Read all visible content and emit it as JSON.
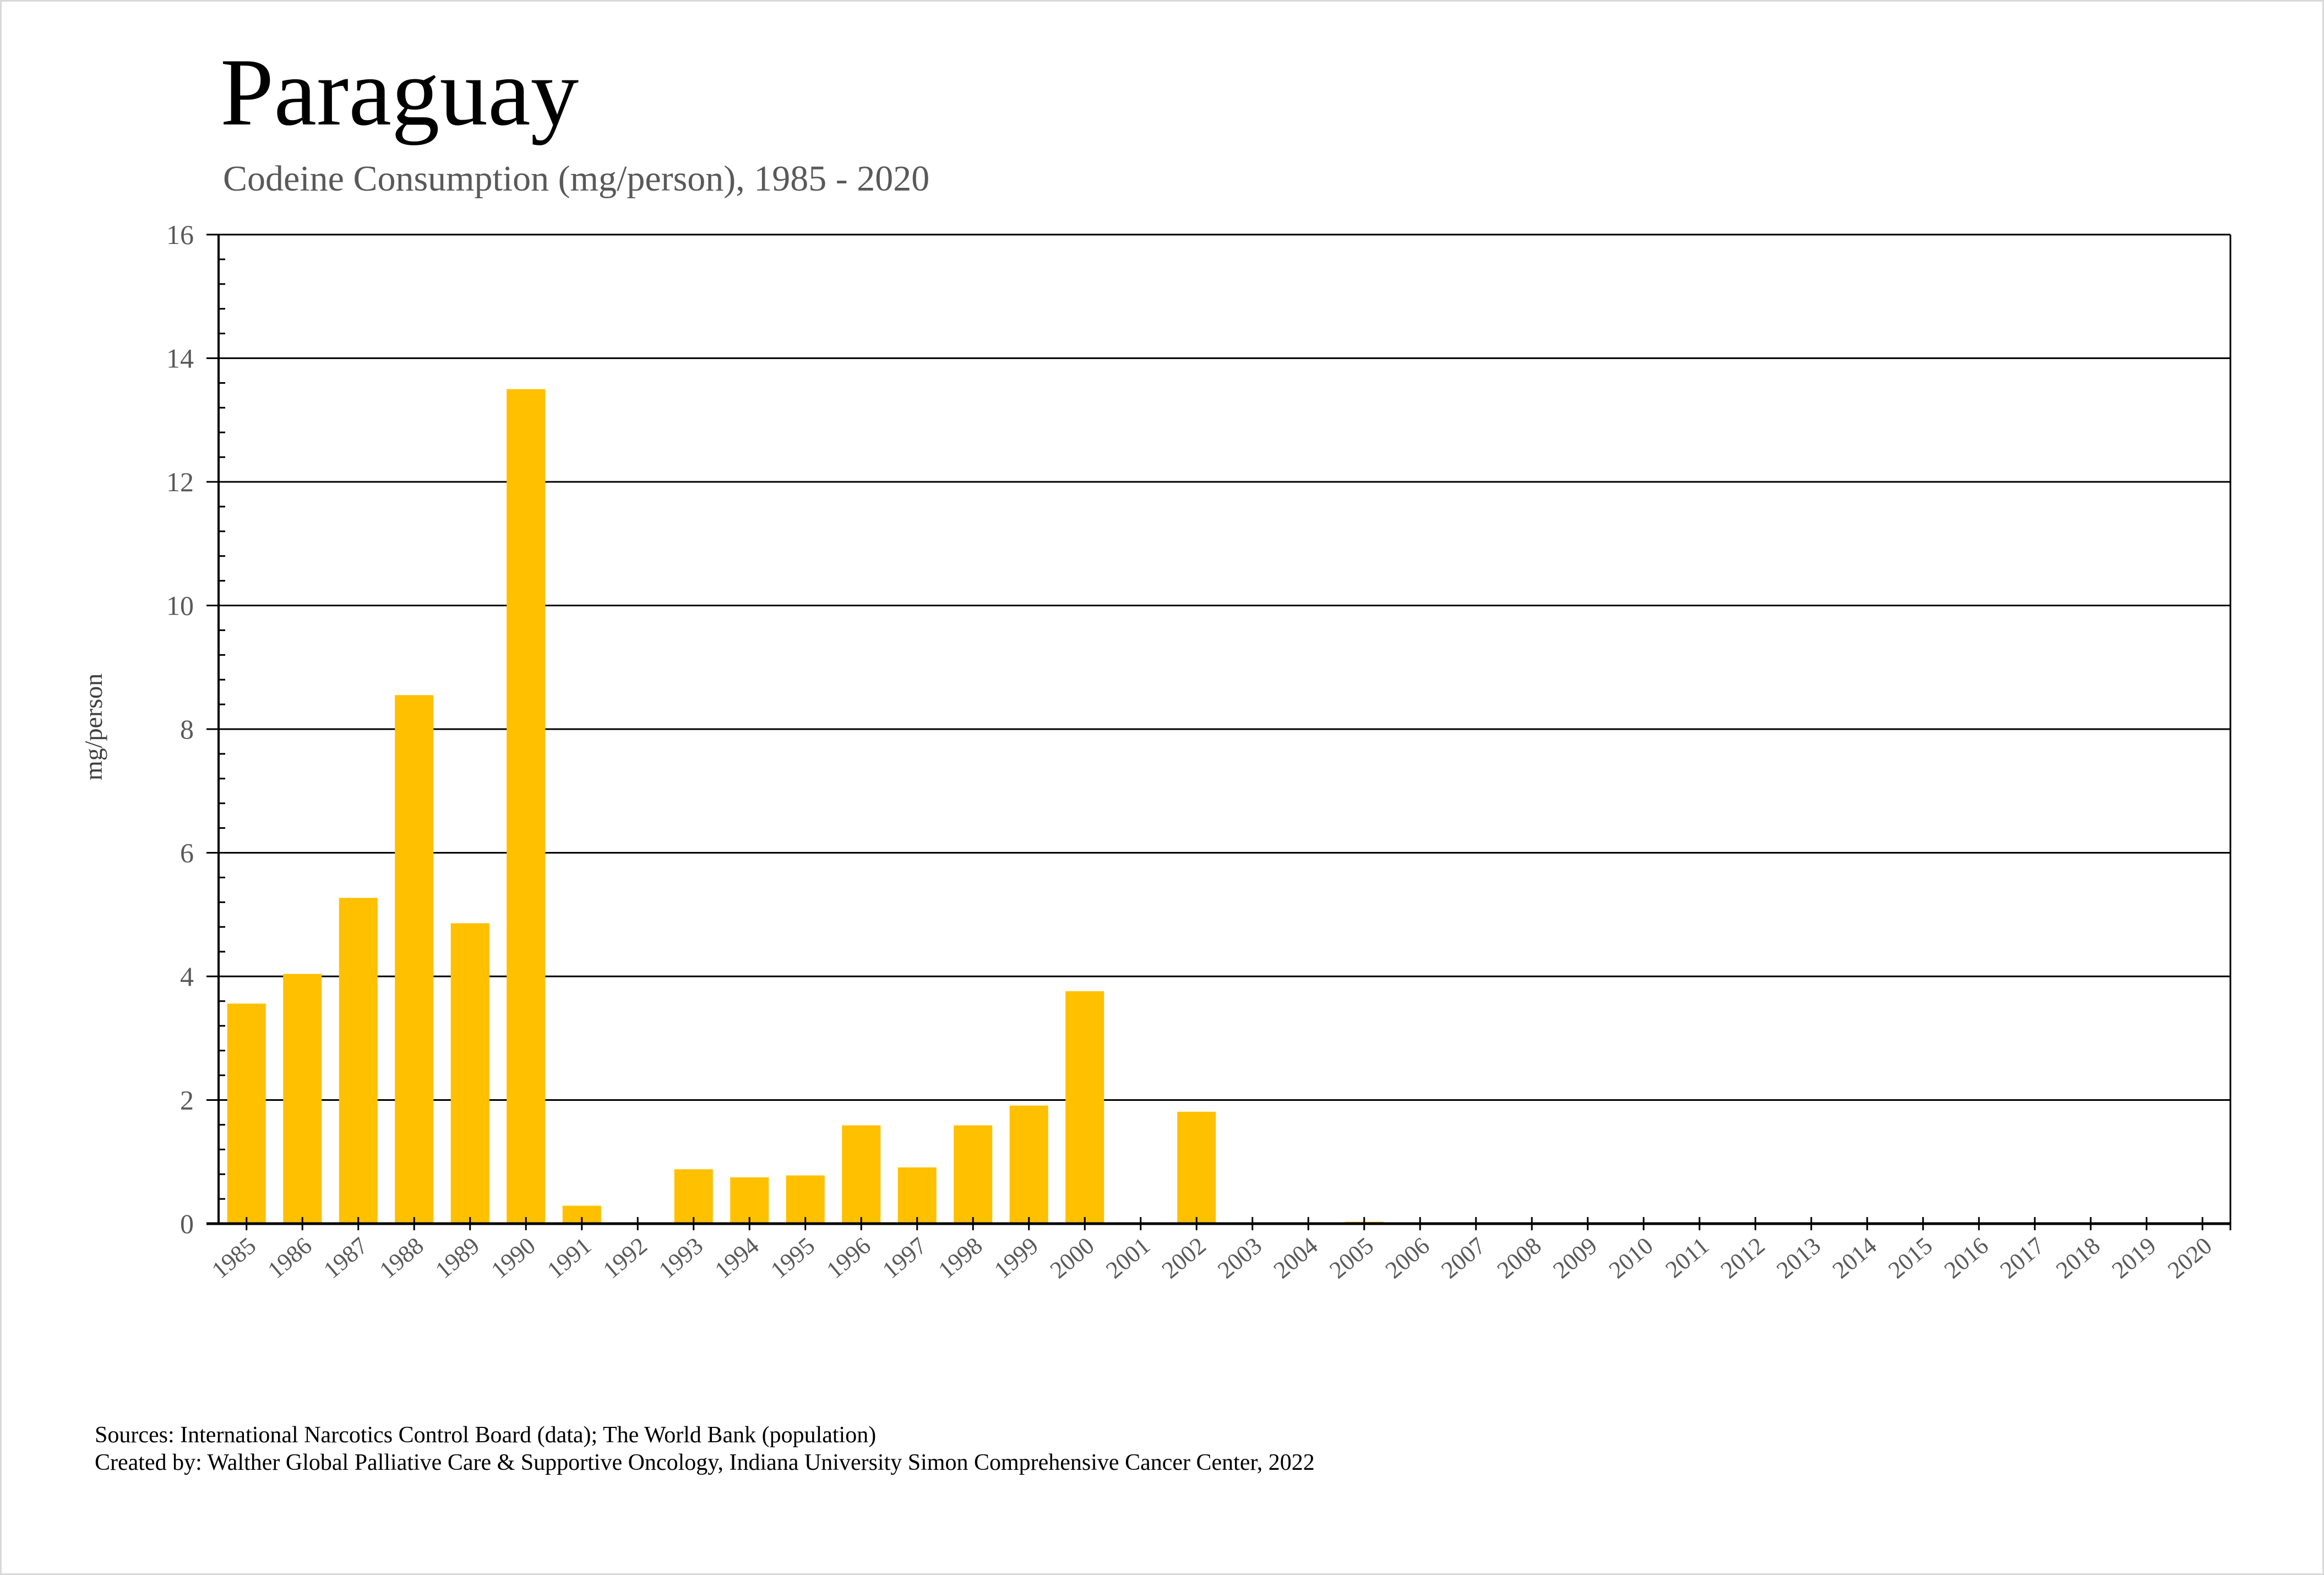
{
  "header": {
    "title": "Paraguay",
    "subtitle": "Codeine Consumption (mg/person), 1985 - 2020"
  },
  "footer": {
    "sources": "Sources: International Narcotics Control Board (data); The World Bank (population)",
    "credit": "Created by: Walther Global Palliative Care & Supportive Oncology, Indiana University Simon Comprehensive Cancer Center, 2022"
  },
  "chart_data": {
    "type": "bar",
    "title": "Paraguay",
    "subtitle": "Codeine Consumption (mg/person), 1985 - 2020",
    "xlabel": "",
    "ylabel": "mg/person",
    "ylim": [
      0,
      16
    ],
    "yticks": [
      0,
      2,
      4,
      6,
      8,
      10,
      12,
      14,
      16
    ],
    "grid": true,
    "legend": "none",
    "bar_color": "#FFC000",
    "categories": [
      "1985",
      "1986",
      "1987",
      "1988",
      "1989",
      "1990",
      "1991",
      "1992",
      "1993",
      "1994",
      "1995",
      "1996",
      "1997",
      "1998",
      "1999",
      "2000",
      "2001",
      "2002",
      "2003",
      "2004",
      "2005",
      "2006",
      "2007",
      "2008",
      "2009",
      "2010",
      "2011",
      "2012",
      "2013",
      "2014",
      "2015",
      "2016",
      "2017",
      "2018",
      "2019",
      "2020"
    ],
    "values": [
      3.56,
      4.04,
      5.27,
      8.55,
      4.86,
      13.5,
      0.29,
      0.01,
      0.88,
      0.75,
      0.78,
      1.59,
      0.91,
      1.59,
      1.91,
      3.76,
      0.01,
      1.81,
      0,
      0,
      0.03,
      0,
      0,
      0,
      0,
      0,
      0,
      0,
      0,
      0,
      0,
      0,
      0,
      0,
      0,
      0
    ]
  }
}
